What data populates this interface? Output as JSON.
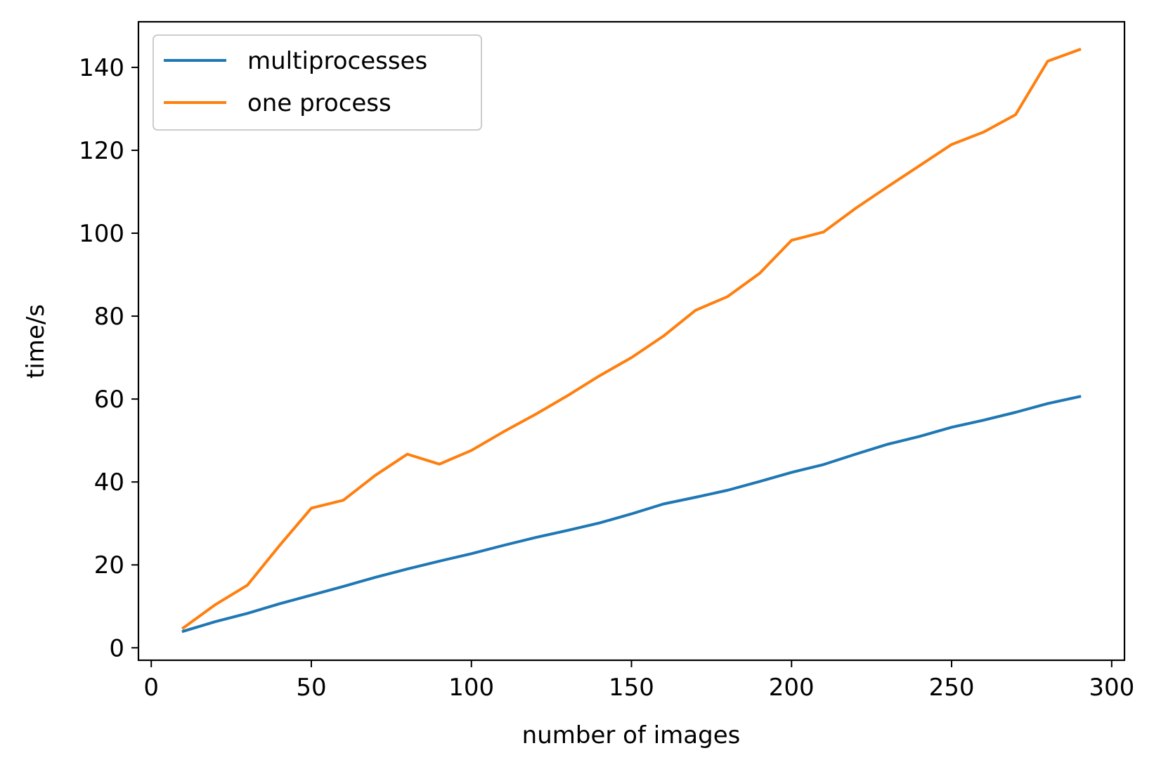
{
  "chart_data": {
    "type": "line",
    "xlabel": "number of images",
    "ylabel": "time/s",
    "xlim": [
      -4,
      304
    ],
    "ylim": [
      -3,
      151
    ],
    "xticks": [
      0,
      50,
      100,
      150,
      200,
      250,
      300
    ],
    "yticks": [
      0,
      20,
      40,
      60,
      80,
      100,
      120,
      140
    ],
    "legend_position": "top-left",
    "grid": false,
    "x": [
      10,
      20,
      30,
      40,
      50,
      60,
      70,
      80,
      90,
      100,
      110,
      120,
      130,
      140,
      150,
      160,
      170,
      180,
      190,
      200,
      210,
      220,
      230,
      240,
      250,
      260,
      270,
      280,
      290
    ],
    "series": [
      {
        "name": "multiprocesses",
        "color": "#1f77b4",
        "values": [
          4.0,
          6.3,
          8.3,
          10.6,
          12.7,
          14.8,
          17.0,
          19.0,
          20.9,
          22.7,
          24.7,
          26.6,
          28.3,
          30.1,
          32.3,
          34.7,
          36.3,
          38.0,
          40.1,
          42.3,
          44.2,
          46.7,
          49.1,
          51.0,
          53.2,
          54.9,
          56.8,
          58.9,
          60.6
        ]
      },
      {
        "name": "one process",
        "color": "#ff7f0e",
        "values": [
          4.8,
          10.4,
          15.1,
          24.6,
          33.7,
          35.6,
          41.6,
          46.7,
          44.3,
          47.6,
          52.1,
          56.3,
          60.8,
          65.6,
          70.0,
          75.2,
          81.4,
          84.7,
          90.3,
          98.3,
          100.3,
          106.0,
          111.2,
          116.3,
          121.4,
          124.4,
          128.6,
          141.5,
          144.3
        ]
      }
    ]
  }
}
